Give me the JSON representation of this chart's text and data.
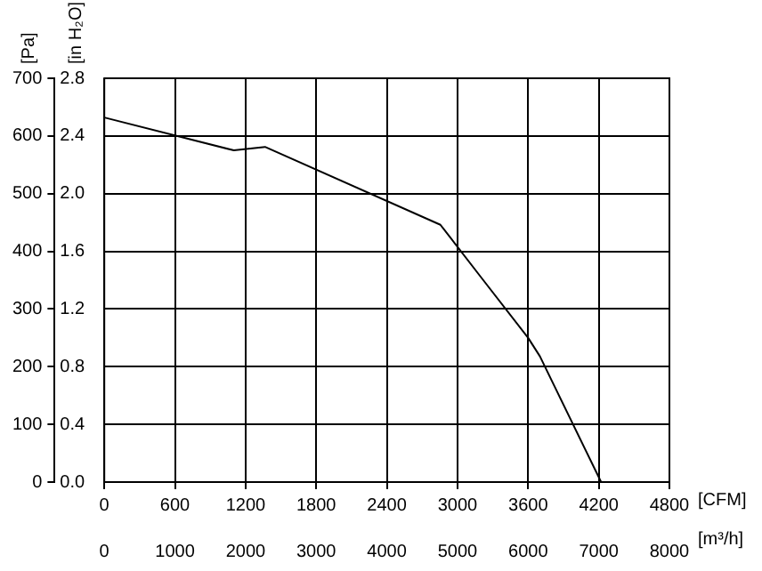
{
  "chart_data": {
    "type": "line",
    "ylabel": "[Pa]",
    "y2label": "[in H₂O]",
    "xlabel": "[CFM]",
    "x2label": "[m³/h]",
    "xlim": [
      0,
      4800
    ],
    "xticks": [
      0,
      600,
      1200,
      1800,
      2400,
      3000,
      3600,
      4200,
      4800
    ],
    "x2lim": [
      0,
      8000
    ],
    "x2ticks": [
      0,
      1000,
      2000,
      3000,
      4000,
      5000,
      6000,
      7000,
      8000
    ],
    "ylim": [
      0,
      700
    ],
    "yticks": [
      0,
      100,
      200,
      300,
      400,
      500,
      600,
      700
    ],
    "y2lim": [
      0,
      2.8
    ],
    "y2ticks": [
      {
        "value": 0,
        "label": "0.0"
      },
      {
        "value": 0.4,
        "label": "0.4"
      },
      {
        "value": 0.8,
        "label": "0.8"
      },
      {
        "value": 1.2,
        "label": "1.2"
      },
      {
        "value": 1.6,
        "label": "1.6"
      },
      {
        "value": 2.0,
        "label": "2.0"
      },
      {
        "value": 2.4,
        "label": "2.4"
      },
      {
        "value": 2.8,
        "label": "2.8"
      }
    ],
    "grid": true,
    "marker": "none",
    "line_style": "solid",
    "series": [
      {
        "color": "#000000",
        "x": [
          0,
          1100,
          1365,
          2855,
          3200,
          3600,
          3700,
          4220
        ],
        "values": [
          632,
          575,
          581,
          446,
          355,
          250,
          218,
          0
        ]
      }
    ]
  }
}
